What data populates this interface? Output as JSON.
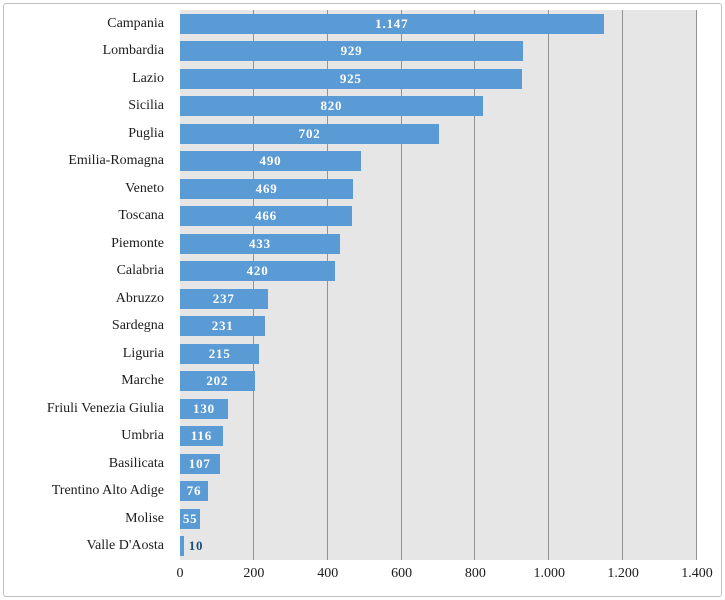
{
  "window": {
    "background": "#ffffff",
    "frame_border_color": "#c2c2c2"
  },
  "chart_data": {
    "type": "bar",
    "orientation": "horizontal",
    "title": "",
    "xlabel": "",
    "ylabel": "",
    "categories": [
      "Campania",
      "Lombardia",
      "Lazio",
      "Sicilia",
      "Puglia",
      "Emilia-Romagna",
      "Veneto",
      "Toscana",
      "Piemonte",
      "Calabria",
      "Abruzzo",
      "Sardegna",
      "Liguria",
      "Marche",
      "Friuli Venezia Giulia",
      "Umbria",
      "Basilicata",
      "Trentino Alto Adige",
      "Molise",
      "Valle D'Aosta"
    ],
    "values": [
      1147,
      929,
      925,
      820,
      702,
      490,
      469,
      466,
      433,
      420,
      237,
      231,
      215,
      202,
      130,
      116,
      107,
      76,
      55,
      10
    ],
    "value_labels": [
      "1.147",
      "929",
      "925",
      "820",
      "702",
      "490",
      "469",
      "466",
      "433",
      "420",
      "237",
      "231",
      "215",
      "202",
      "130",
      "116",
      "107",
      "76",
      "55",
      "10"
    ],
    "xlim": [
      0,
      1400
    ],
    "xticks": [
      0,
      200,
      400,
      600,
      800,
      1000,
      1200,
      1400
    ],
    "xtick_labels": [
      "0",
      "200",
      "400",
      "600",
      "800",
      "1.000",
      "1.200",
      "1.400"
    ],
    "grid": true,
    "legend": false,
    "colors": {
      "bar": "#5b9bd5",
      "plot_background": "#e6e6e6",
      "gridline": "#929292",
      "value_label_inside": "#ffffff",
      "value_label_outside": "#1f4e79",
      "axis_text": "#1c1c1c"
    }
  }
}
